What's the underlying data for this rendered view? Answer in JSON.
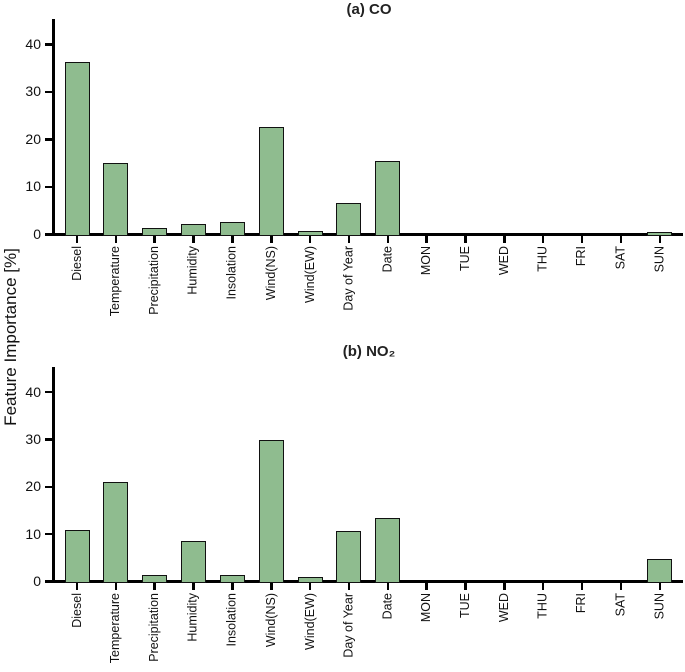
{
  "figure": {
    "y_axis_label": "Feature Importance [%]"
  },
  "chart_data": [
    {
      "type": "bar",
      "title": "(a) CO",
      "categories": [
        "Diesel",
        "Temperature",
        "Precipitation",
        "Humidity",
        "Insolation",
        "Wind(NS)",
        "Wind(EW)",
        "Day of Year",
        "Date",
        "MON",
        "TUE",
        "WED",
        "THU",
        "FRI",
        "SAT",
        "SUN"
      ],
      "values": [
        36.0,
        14.8,
        1.0,
        1.9,
        2.4,
        22.2,
        0.5,
        6.3,
        15.2,
        0,
        0,
        0,
        0,
        0,
        0,
        0.3
      ],
      "xlabel": "",
      "ylabel": "Feature Importance [%]",
      "ylim": [
        0,
        45
      ],
      "yticks": [
        0,
        10,
        20,
        30,
        40
      ],
      "grid": false,
      "legend": "none",
      "bar_color": "#8fbc8f",
      "bar_edge_color": "#111111"
    },
    {
      "type": "bar",
      "title": "(b) NO₂",
      "categories": [
        "Diesel",
        "Temperature",
        "Precipitation",
        "Humidity",
        "Insolation",
        "Wind(NS)",
        "Wind(EW)",
        "Day of Year",
        "Date",
        "MON",
        "TUE",
        "WED",
        "THU",
        "FRI",
        "SAT",
        "SUN"
      ],
      "values": [
        10.5,
        20.7,
        1.1,
        8.3,
        1.0,
        29.5,
        0.7,
        10.3,
        13.0,
        0,
        0,
        0,
        0,
        0,
        0,
        4.5
      ],
      "xlabel": "",
      "ylabel": "Feature Importance [%]",
      "ylim": [
        0,
        45
      ],
      "yticks": [
        0,
        10,
        20,
        30,
        40
      ],
      "grid": false,
      "legend": "none",
      "bar_color": "#8fbc8f",
      "bar_edge_color": "#111111"
    }
  ]
}
